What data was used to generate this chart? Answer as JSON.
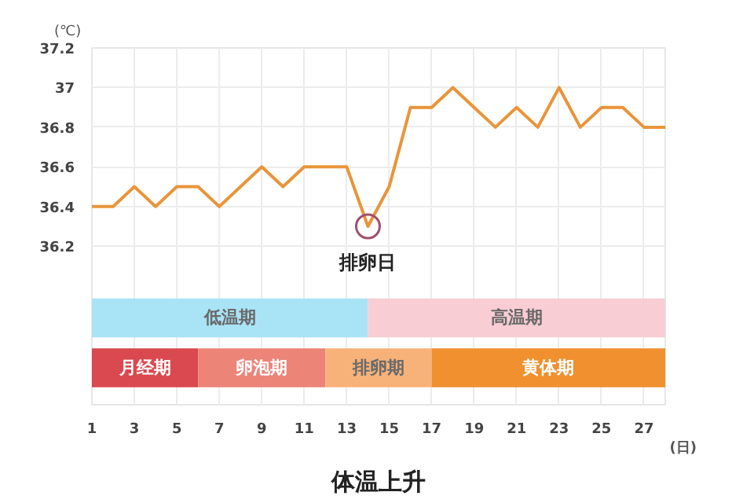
{
  "chart_data": {
    "type": "line",
    "ylabel": "(℃)",
    "xlabel": "(日)",
    "x": [
      1,
      2,
      3,
      4,
      5,
      6,
      7,
      8,
      9,
      10,
      11,
      12,
      13,
      14,
      15,
      16,
      17,
      18,
      19,
      20,
      21,
      22,
      23,
      24,
      25,
      26,
      27,
      28
    ],
    "series": [
      {
        "color": "#e8953a",
        "values": [
          36.4,
          36.4,
          36.5,
          36.4,
          36.5,
          36.5,
          36.4,
          36.5,
          36.6,
          36.5,
          36.6,
          36.6,
          36.6,
          36.3,
          36.5,
          36.9,
          36.9,
          37.0,
          36.9,
          36.8,
          36.9,
          36.8,
          37.0,
          36.8,
          36.9,
          36.9,
          36.8,
          36.8
        ]
      }
    ],
    "xlim": [
      1,
      28
    ],
    "xticks": [
      1,
      3,
      5,
      7,
      9,
      11,
      13,
      15,
      17,
      19,
      21,
      23,
      25,
      27
    ],
    "ylim": [
      35.4,
      37.2
    ],
    "yticks": [
      36.2,
      36.4,
      36.6,
      36.8,
      37,
      37.2
    ],
    "grid": true,
    "marker": "none",
    "line_style": "solid",
    "bands": [
      {
        "axis": "x",
        "from": 1,
        "to": 14,
        "label": "低温期",
        "color": "#a9e3f6"
      },
      {
        "axis": "x",
        "from": 14,
        "to": 28,
        "label": "高温期",
        "color": "#f8cdd3"
      },
      {
        "axis": "x",
        "from": 1,
        "to": 6,
        "label": "月经期",
        "color": "#d9494f"
      },
      {
        "axis": "x",
        "from": 6,
        "to": 12,
        "label": "卵泡期",
        "color": "#ec8478"
      },
      {
        "axis": "x",
        "from": 12,
        "to": 17,
        "label": "排卵期",
        "color": "#f7b27a"
      },
      {
        "axis": "x",
        "from": 17,
        "to": 28,
        "label": "黄体期",
        "color": "#f0902e"
      }
    ],
    "annotations": [
      {
        "text": "排卵日",
        "x": 14,
        "y": 36.3
      },
      "体温上升"
    ]
  }
}
